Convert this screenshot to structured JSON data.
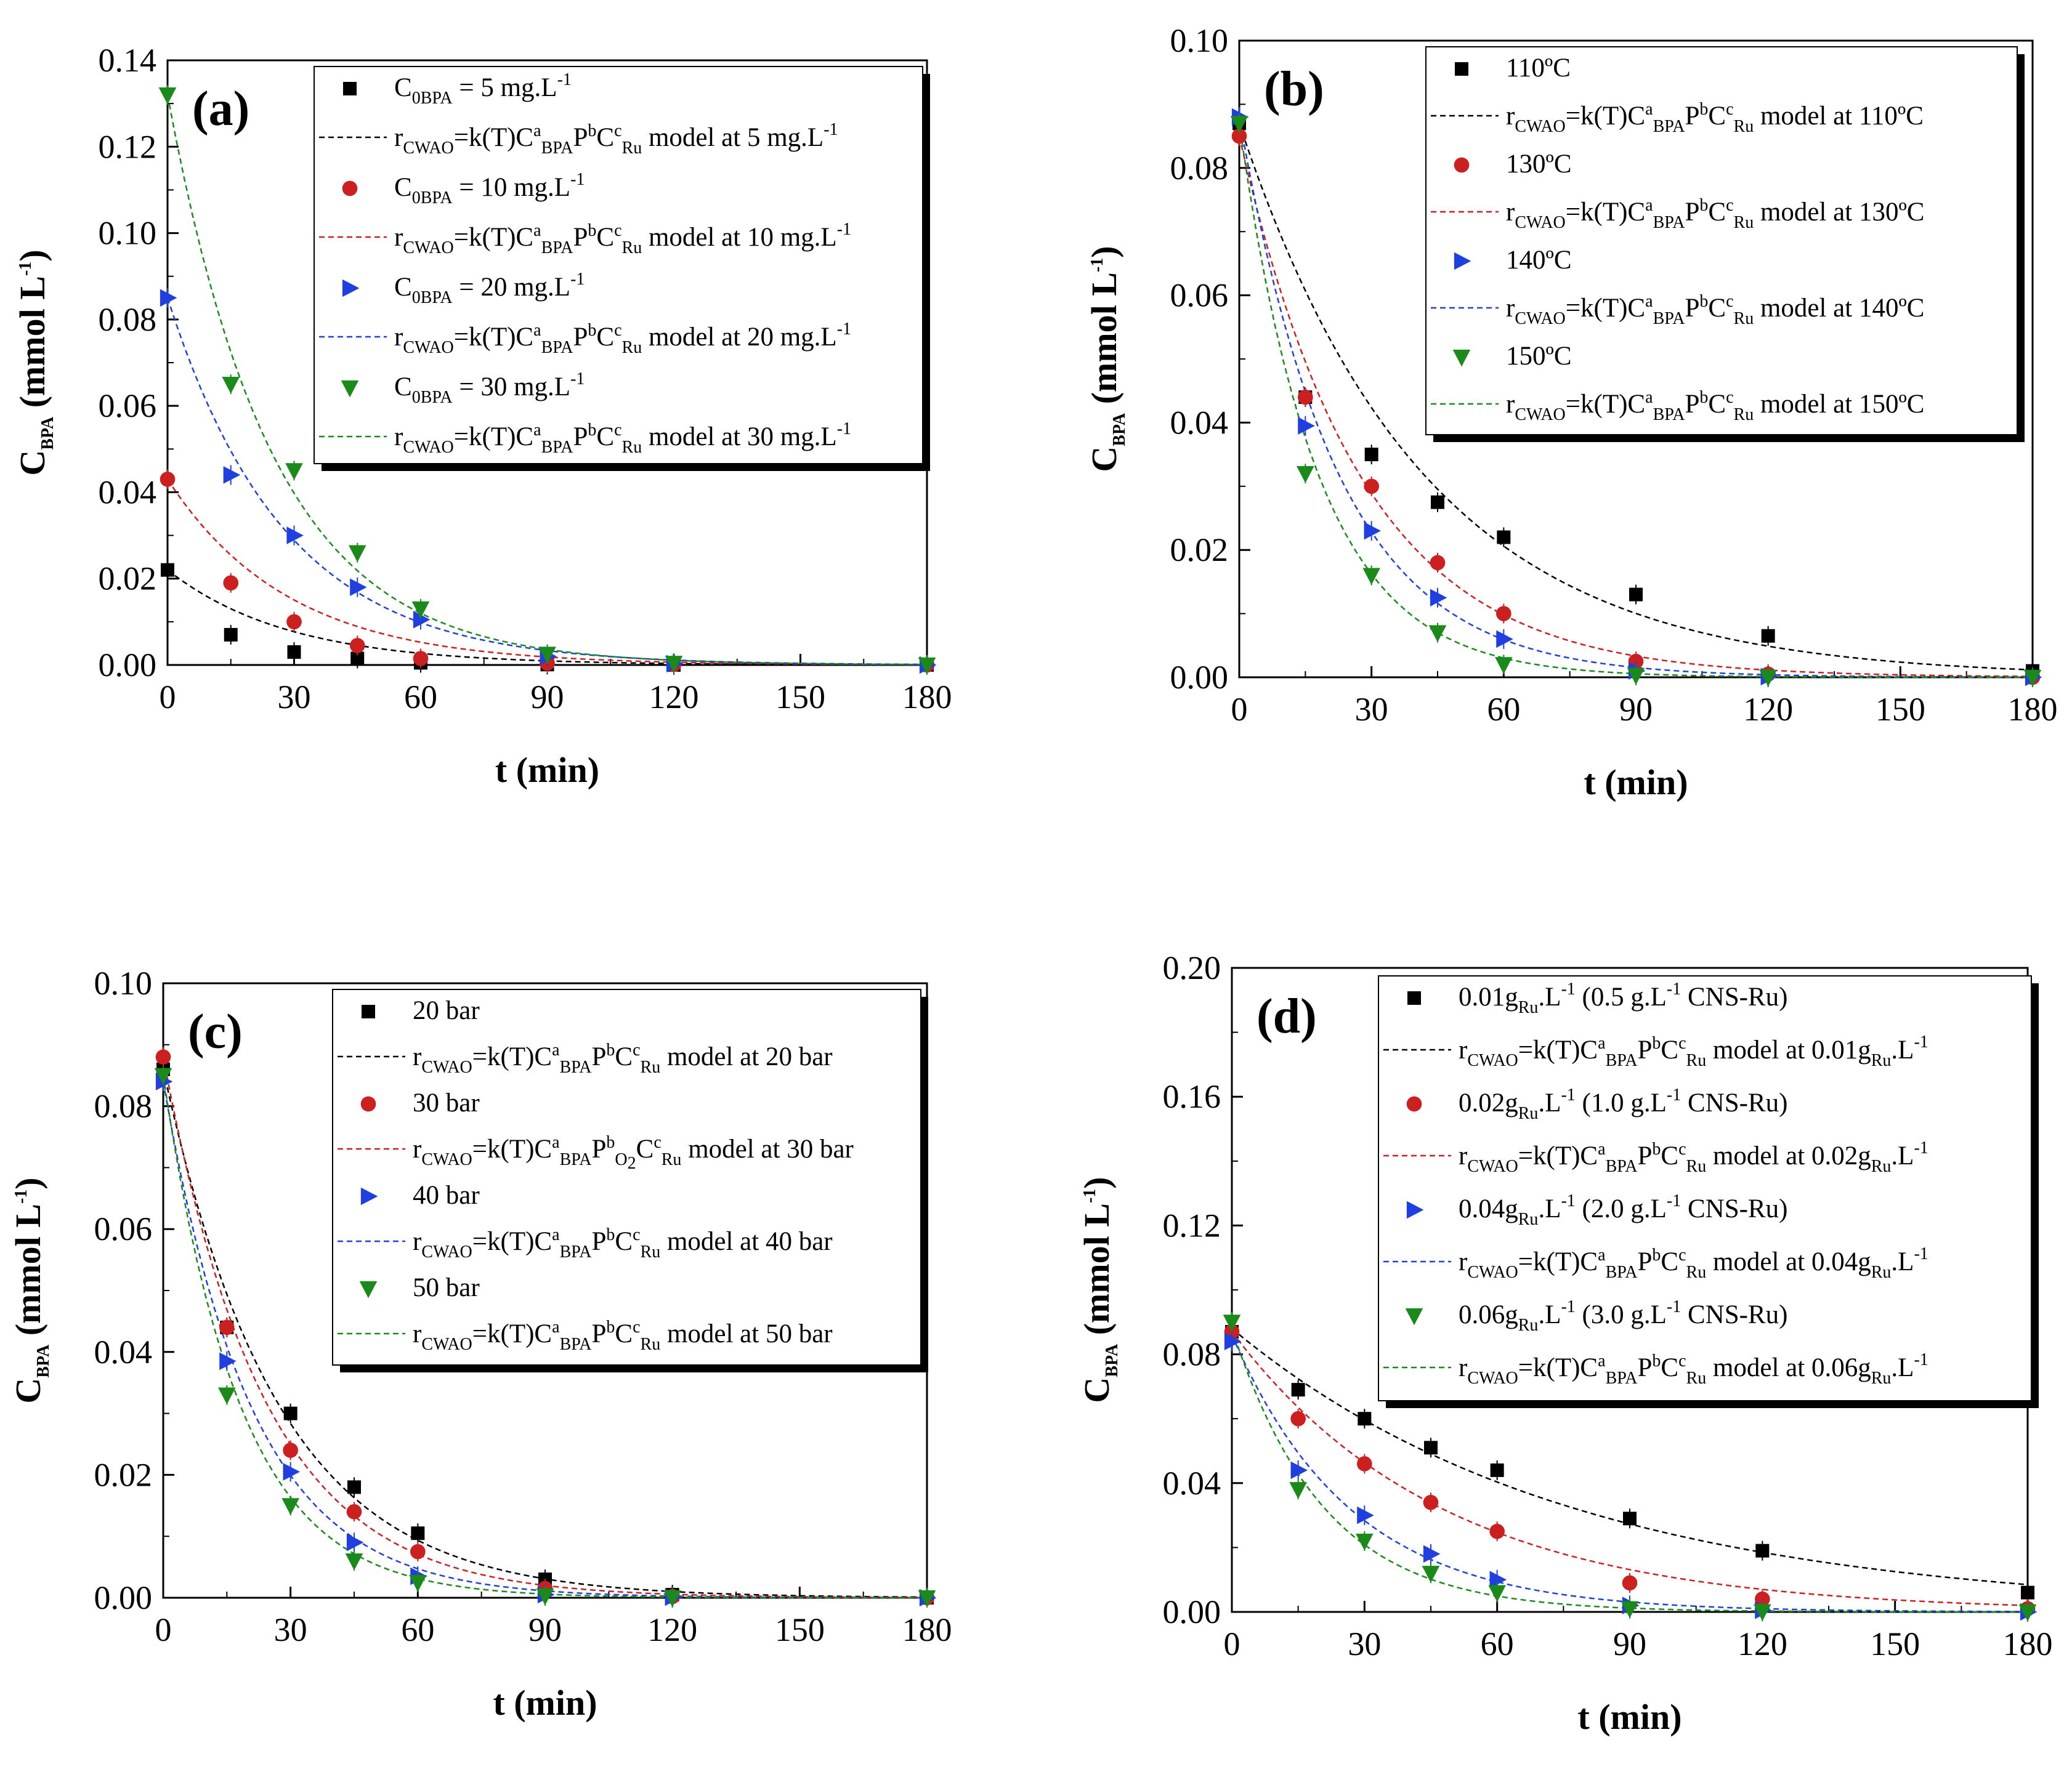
{
  "chart_data": [
    {
      "type": "scatter",
      "panel": "(a)",
      "xlabel": "t (min)",
      "ylabel": "C_BPA (mmol L⁻¹)",
      "xlim": [
        0,
        180
      ],
      "ylim": [
        0,
        0.14
      ],
      "xticks": [
        0,
        30,
        60,
        90,
        120,
        150,
        180
      ],
      "yticks": [
        0.0,
        0.02,
        0.04,
        0.06,
        0.08,
        0.1,
        0.12,
        0.14
      ],
      "ytick_decimals": 2,
      "x": [
        0,
        15,
        30,
        45,
        60,
        90,
        120,
        180
      ],
      "series": [
        {
          "marker": "square",
          "color": "#000000",
          "c0": 0.022,
          "k": 0.035,
          "legend": {
            "main": "C",
            "sub": "0BPA",
            "rest": " = 5 mg.L",
            "sup": "-1"
          },
          "model_cond": "5 mg.L",
          "model_sup": "-1",
          "values": [
            0.022,
            0.007,
            0.003,
            0.0015,
            0.0005,
            0.0001,
            0.0,
            0.0
          ]
        },
        {
          "marker": "circle",
          "color": "#cc1f1f",
          "c0": 0.043,
          "k": 0.035,
          "legend": {
            "main": "C",
            "sub": "0BPA",
            "rest": " = 10 mg.L",
            "sup": "-1"
          },
          "model_cond": "10 mg.L",
          "model_sup": "-1",
          "values": [
            0.043,
            0.019,
            0.01,
            0.0045,
            0.0015,
            0.0004,
            0.0001,
            0.0
          ]
        },
        {
          "marker": "tri-right",
          "color": "#1f3fe0",
          "c0": 0.085,
          "k": 0.036,
          "legend": {
            "main": "C",
            "sub": "0BPA",
            "rest": " = 20 mg.L",
            "sup": "-1"
          },
          "model_cond": "20 mg.L",
          "model_sup": "-1",
          "values": [
            0.085,
            0.044,
            0.03,
            0.018,
            0.0105,
            0.002,
            0.0003,
            0.0
          ]
        },
        {
          "marker": "tri-down",
          "color": "#1a8a1a",
          "c0": 0.132,
          "k": 0.04,
          "legend": {
            "main": "C",
            "sub": "0BPA",
            "rest": " = 30 mg.L",
            "sup": "-1"
          },
          "model_cond": "30 mg.L",
          "model_sup": "-1",
          "values": [
            0.132,
            0.065,
            0.045,
            0.026,
            0.013,
            0.0025,
            0.0004,
            0.0
          ]
        }
      ]
    },
    {
      "type": "scatter",
      "panel": "(b)",
      "xlabel": "t (min)",
      "ylabel": "C_BPA (mmol L⁻¹)",
      "xlim": [
        0,
        180
      ],
      "ylim": [
        0,
        0.1
      ],
      "xticks": [
        0,
        30,
        60,
        90,
        120,
        150,
        180
      ],
      "yticks": [
        0.0,
        0.02,
        0.04,
        0.06,
        0.08,
        0.1
      ],
      "ytick_decimals": 2,
      "x": [
        0,
        15,
        30,
        45,
        60,
        90,
        120,
        180
      ],
      "series": [
        {
          "marker": "square",
          "color": "#000000",
          "c0": 0.087,
          "k": 0.024,
          "legend": {
            "main": "110ºC",
            "sub": "",
            "rest": "",
            "sup": ""
          },
          "model_cond": "110ºC",
          "model_sup": "",
          "values": [
            0.087,
            0.044,
            0.035,
            0.0275,
            0.022,
            0.013,
            0.0065,
            0.001
          ]
        },
        {
          "marker": "circle",
          "color": "#cc1f1f",
          "c0": 0.085,
          "k": 0.036,
          "legend": {
            "main": "130ºC",
            "sub": "",
            "rest": "",
            "sup": ""
          },
          "model_cond": "130ºC",
          "model_sup": "",
          "values": [
            0.085,
            0.044,
            0.03,
            0.018,
            0.01,
            0.0025,
            0.0005,
            0.0
          ]
        },
        {
          "marker": "tri-right",
          "color": "#1f3fe0",
          "c0": 0.088,
          "k": 0.045,
          "legend": {
            "main": "140ºC",
            "sub": "",
            "rest": "",
            "sup": ""
          },
          "model_cond": "140ºC",
          "model_sup": "",
          "values": [
            0.088,
            0.0395,
            0.023,
            0.0125,
            0.006,
            0.001,
            0.0001,
            0.0
          ]
        },
        {
          "marker": "tri-down",
          "color": "#1a8a1a",
          "c0": 0.087,
          "k": 0.056,
          "legend": {
            "main": "150ºC",
            "sub": "",
            "rest": "",
            "sup": ""
          },
          "model_cond": "150ºC",
          "model_sup": "",
          "values": [
            0.087,
            0.032,
            0.016,
            0.007,
            0.002,
            0.0003,
            0.0,
            0.0
          ]
        }
      ]
    },
    {
      "type": "scatter",
      "panel": "(c)",
      "xlabel": "t (min)",
      "ylabel": "C_BPA (mmol L⁻¹)",
      "xlim": [
        0,
        180
      ],
      "ylim": [
        0,
        0.1
      ],
      "xticks": [
        0,
        30,
        60,
        90,
        120,
        150,
        180
      ],
      "yticks": [
        0.0,
        0.02,
        0.04,
        0.06,
        0.08,
        0.1
      ],
      "ytick_decimals": 2,
      "x": [
        0,
        15,
        30,
        45,
        60,
        90,
        120,
        180
      ],
      "series": [
        {
          "marker": "square",
          "color": "#000000",
          "c0": 0.086,
          "k": 0.037,
          "legend": {
            "main": "20 bar",
            "sub": "",
            "rest": "",
            "sup": ""
          },
          "model_cond": "20 bar",
          "model_sup": "",
          "values": [
            0.086,
            0.044,
            0.03,
            0.018,
            0.0105,
            0.003,
            0.0005,
            0.0
          ]
        },
        {
          "marker": "circle",
          "color": "#cc1f1f",
          "c0": 0.088,
          "k": 0.042,
          "legend": {
            "main": "30 bar",
            "sub": "",
            "rest": "",
            "sup": ""
          },
          "model_cond": "30 bar",
          "model_sup": "",
          "values": [
            0.088,
            0.044,
            0.024,
            0.014,
            0.0075,
            0.0015,
            0.0002,
            0.0
          ]
        },
        {
          "marker": "tri-right",
          "color": "#1f3fe0",
          "c0": 0.084,
          "k": 0.048,
          "legend": {
            "main": "40 bar",
            "sub": "",
            "rest": "",
            "sup": ""
          },
          "model_cond": "40 bar",
          "model_sup": "",
          "values": [
            0.084,
            0.0385,
            0.0205,
            0.009,
            0.0035,
            0.0005,
            0.0001,
            0.0
          ]
        },
        {
          "marker": "tri-down",
          "color": "#1a8a1a",
          "c0": 0.085,
          "k": 0.055,
          "legend": {
            "main": "50 bar",
            "sub": "",
            "rest": "",
            "sup": ""
          },
          "model_cond": "50 bar",
          "model_sup": "",
          "values": [
            0.085,
            0.033,
            0.015,
            0.006,
            0.0025,
            0.0003,
            0.0,
            0.0
          ]
        }
      ]
    },
    {
      "type": "scatter",
      "panel": "(d)",
      "xlabel": "t (min)",
      "ylabel": "C_BPA (mmol L⁻¹)",
      "xlim": [
        0,
        180
      ],
      "ylim": [
        0,
        0.2
      ],
      "xticks": [
        0,
        30,
        60,
        90,
        120,
        150,
        180
      ],
      "yticks": [
        0.0,
        0.04,
        0.08,
        0.12,
        0.16,
        0.2
      ],
      "ytick_decimals": 2,
      "x": [
        0,
        15,
        30,
        45,
        60,
        90,
        120,
        180
      ],
      "series": [
        {
          "marker": "square",
          "color": "#000000",
          "c0": 0.088,
          "k": 0.013,
          "legend": {
            "main": "0.01g",
            "sub": "Ru",
            "rest": ".L",
            "sup": "-1",
            "tail": " (0.5 g.L",
            "tailsup": "-1",
            "tail2": " CNS-Ru)"
          },
          "model_cond": "0.01g",
          "model_condsub": "Ru",
          "model_tail": ".L",
          "model_sup": "-1",
          "values": [
            0.087,
            0.069,
            0.06,
            0.051,
            0.044,
            0.029,
            0.019,
            0.006
          ]
        },
        {
          "marker": "circle",
          "color": "#cc1f1f",
          "c0": 0.087,
          "k": 0.021,
          "legend": {
            "main": "0.02g",
            "sub": "Ru",
            "rest": ".L",
            "sup": "-1",
            "tail": " (1.0 g.L",
            "tailsup": "-1",
            "tail2": " CNS-Ru)"
          },
          "model_cond": "0.02g",
          "model_condsub": "Ru",
          "model_tail": ".L",
          "model_sup": "-1",
          "values": [
            0.087,
            0.06,
            0.046,
            0.034,
            0.025,
            0.009,
            0.004,
            0.001
          ]
        },
        {
          "marker": "tri-right",
          "color": "#1f3fe0",
          "c0": 0.086,
          "k": 0.037,
          "legend": {
            "main": "0.04g",
            "sub": "Ru",
            "rest": ".L",
            "sup": "-1",
            "tail": " (2.0 g.L",
            "tailsup": "-1",
            "tail2": " CNS-Ru)"
          },
          "model_cond": "0.04g",
          "model_condsub": "Ru",
          "model_tail": ".L",
          "model_sup": "-1",
          "values": [
            0.084,
            0.044,
            0.03,
            0.018,
            0.01,
            0.002,
            0.0005,
            0.0
          ]
        },
        {
          "marker": "tri-down",
          "color": "#1a8a1a",
          "c0": 0.088,
          "k": 0.048,
          "legend": {
            "main": "0.06g",
            "sub": "Ru",
            "rest": ".L",
            "sup": "-1",
            "tail": " (3.0 g.L",
            "tailsup": "-1",
            "tail2": " CNS-Ru)"
          },
          "model_cond": "0.06g",
          "model_condsub": "Ru",
          "model_tail": ".L",
          "model_sup": "-1",
          "values": [
            0.09,
            0.038,
            0.022,
            0.012,
            0.006,
            0.001,
            0.0001,
            0.0
          ]
        }
      ]
    }
  ],
  "model_label": {
    "r": "r",
    "r_sub": "CWAO",
    "eq": "=k(T)C",
    "c_sup": "a",
    "c_sub": "BPA",
    "p": "P",
    "p_sup": "b",
    "p_sub_o2": "O",
    "o2_sub": "2",
    "cr": "C",
    "cr_sup": "c",
    "cr_sub": "Ru",
    "model": " model at "
  }
}
